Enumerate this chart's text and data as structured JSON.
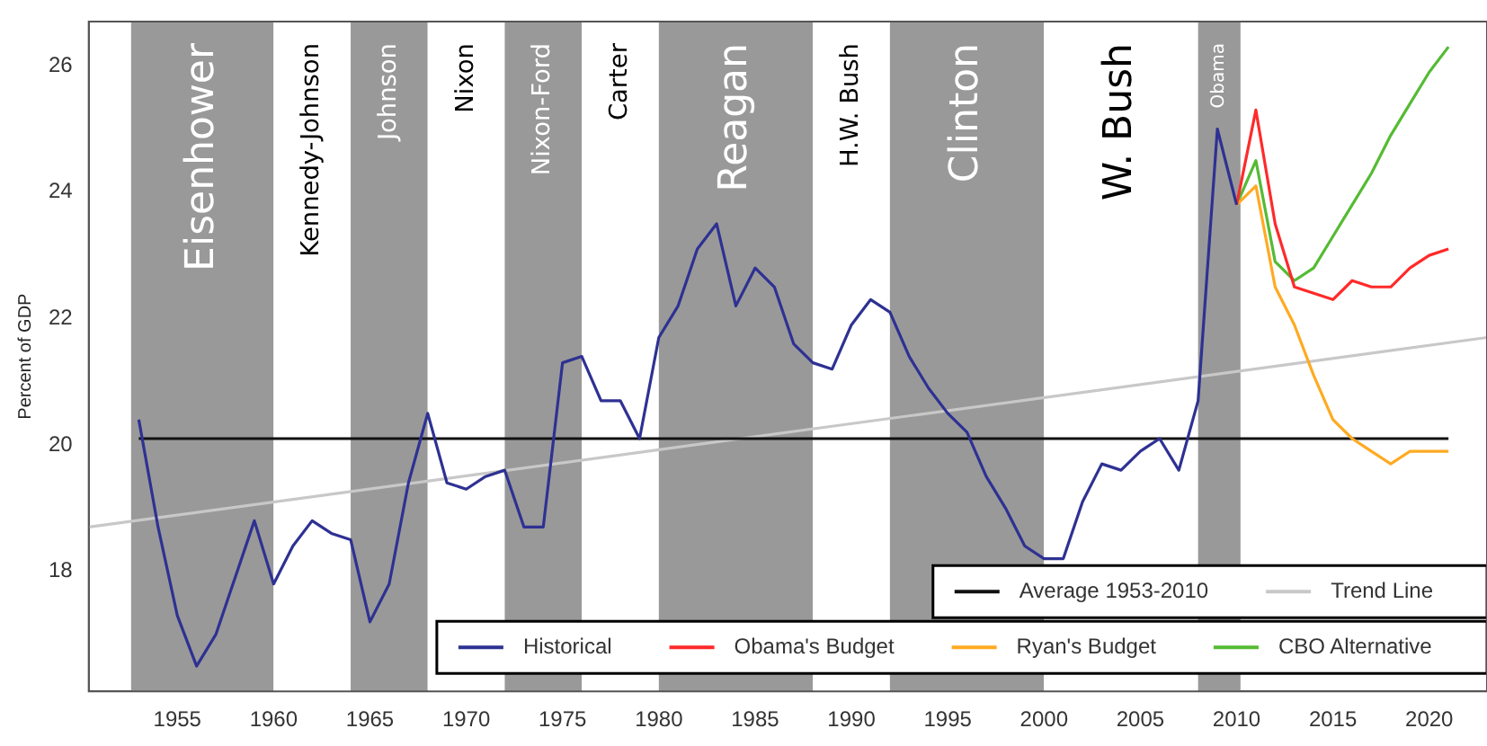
{
  "chart_data": {
    "type": "line",
    "ylabel": "Percent of GDP",
    "xlim": [
      1950.4,
      2023
    ],
    "xticks": [
      1955,
      1960,
      1965,
      1970,
      1975,
      1980,
      1985,
      1990,
      1995,
      2000,
      2005,
      2010,
      2015,
      2020
    ],
    "ylim": [
      16.1,
      26.7
    ],
    "yticks": [
      18,
      20,
      22,
      24,
      26
    ],
    "grid": false,
    "legend": "bottom right",
    "marker": "none",
    "line_style": "solid",
    "bands": [
      {
        "axis": "x",
        "from": 1952.6,
        "to": 1960,
        "label": "Eisenhower",
        "color": "#999999"
      },
      {
        "axis": "x",
        "from": 1960,
        "to": 1964,
        "label": "Kennedy-Johnson",
        "color": "#ffffff"
      },
      {
        "axis": "x",
        "from": 1964,
        "to": 1968,
        "label": "Johnson",
        "color": "#999999"
      },
      {
        "axis": "x",
        "from": 1968,
        "to": 1972,
        "label": "Nixon",
        "color": "#ffffff"
      },
      {
        "axis": "x",
        "from": 1972,
        "to": 1976,
        "label": "Nixon-Ford",
        "color": "#999999"
      },
      {
        "axis": "x",
        "from": 1976,
        "to": 1980,
        "label": "Carter",
        "color": "#ffffff"
      },
      {
        "axis": "x",
        "from": 1980,
        "to": 1988,
        "label": "Reagan",
        "color": "#999999"
      },
      {
        "axis": "x",
        "from": 1988,
        "to": 1992,
        "label": "H.W. Bush",
        "color": "#ffffff"
      },
      {
        "axis": "x",
        "from": 1992,
        "to": 2000,
        "label": "Clinton",
        "color": "#999999"
      },
      {
        "axis": "x",
        "from": 2000,
        "to": 2008,
        "label": "W. Bush",
        "color": "#ffffff"
      },
      {
        "axis": "x",
        "from": 2008,
        "to": 2010.2,
        "label": "Obama",
        "color": "#999999"
      }
    ],
    "series": [
      {
        "name": "Historical",
        "color": "#2e3192",
        "x": [
          1953,
          1954,
          1955,
          1956,
          1957,
          1958,
          1959,
          1960,
          1961,
          1962,
          1963,
          1964,
          1965,
          1966,
          1967,
          1968,
          1969,
          1970,
          1971,
          1972,
          1973,
          1974,
          1975,
          1976,
          1977,
          1978,
          1979,
          1980,
          1981,
          1982,
          1983,
          1984,
          1985,
          1986,
          1987,
          1988,
          1989,
          1990,
          1991,
          1992,
          1993,
          1994,
          1995,
          1996,
          1997,
          1998,
          1999,
          2000,
          2001,
          2002,
          2003,
          2004,
          2005,
          2006,
          2007,
          2008,
          2009,
          2010
        ],
        "values": [
          20.4,
          18.7,
          17.3,
          16.5,
          17.0,
          17.9,
          18.8,
          17.8,
          18.4,
          18.8,
          18.6,
          18.5,
          17.2,
          17.8,
          19.4,
          20.5,
          19.4,
          19.3,
          19.5,
          19.6,
          18.7,
          18.7,
          21.3,
          21.4,
          20.7,
          20.7,
          20.1,
          21.7,
          22.2,
          23.1,
          23.5,
          22.2,
          22.8,
          22.5,
          21.6,
          21.3,
          21.2,
          21.9,
          22.3,
          22.1,
          21.4,
          20.9,
          20.5,
          20.2,
          19.5,
          19.0,
          18.4,
          18.2,
          18.2,
          19.1,
          19.7,
          19.6,
          19.9,
          20.1,
          19.6,
          20.7,
          25.0,
          23.8
        ]
      },
      {
        "name": "Obama's Budget",
        "color": "#ff2a2a",
        "x": [
          2010,
          2011,
          2012,
          2013,
          2014,
          2015,
          2016,
          2017,
          2018,
          2019,
          2020,
          2021
        ],
        "values": [
          23.8,
          25.3,
          23.5,
          22.5,
          22.4,
          22.3,
          22.6,
          22.5,
          22.5,
          22.8,
          23.0,
          23.1
        ]
      },
      {
        "name": "Ryan's Budget",
        "color": "#ffaa22",
        "x": [
          2010,
          2011,
          2012,
          2013,
          2014,
          2015,
          2016,
          2017,
          2018,
          2019,
          2020,
          2021
        ],
        "values": [
          23.8,
          24.1,
          22.5,
          21.9,
          21.1,
          20.4,
          20.1,
          19.9,
          19.7,
          19.9,
          19.9,
          19.9
        ]
      },
      {
        "name": "CBO Alternative",
        "color": "#55bb33",
        "x": [
          2010,
          2011,
          2012,
          2013,
          2014,
          2015,
          2016,
          2017,
          2018,
          2019,
          2020,
          2021
        ],
        "values": [
          23.8,
          24.5,
          22.9,
          22.6,
          22.8,
          23.3,
          23.8,
          24.3,
          24.9,
          25.4,
          25.9,
          26.3
        ]
      },
      {
        "name": "Average 1953-2010",
        "color": "#111111",
        "x": [
          1953,
          2021
        ],
        "values": [
          20.1,
          20.1
        ]
      },
      {
        "name": "Trend Line",
        "color": "#c8c8c8",
        "x": [
          1950.4,
          2023
        ],
        "values": [
          18.7,
          21.7
        ]
      }
    ]
  }
}
